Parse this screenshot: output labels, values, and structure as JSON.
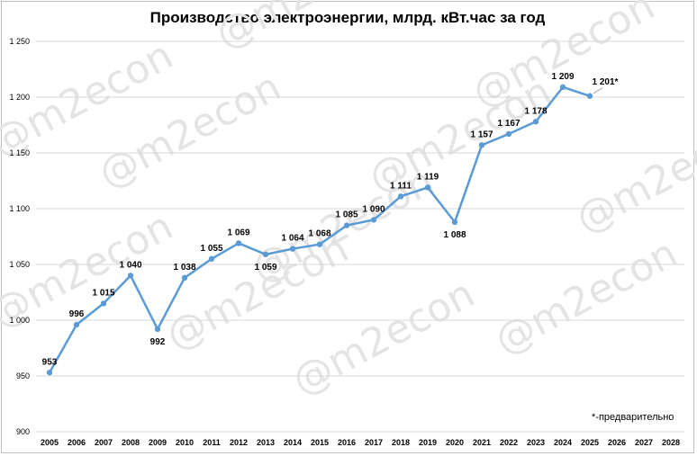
{
  "title": "Производство электроэнергии, млрд. кВт.час за год",
  "note": "*-предварительно",
  "watermark": "@m2econ",
  "chart_data": {
    "type": "line",
    "title": "Производство электроэнергии, млрд. кВт.час за год",
    "xlabel": "",
    "ylabel": "",
    "ylim": [
      900,
      1250
    ],
    "yticks": [
      900,
      950,
      1000,
      1050,
      1100,
      1150,
      1200,
      1250
    ],
    "ytick_labels": [
      "900",
      "950",
      "1 000",
      "1 050",
      "1 100",
      "1 150",
      "1 200",
      "1 250"
    ],
    "categories": [
      "2005",
      "2006",
      "2007",
      "2008",
      "2009",
      "2010",
      "2011",
      "2012",
      "2013",
      "2014",
      "2015",
      "2016",
      "2017",
      "2018",
      "2019",
      "2020",
      "2021",
      "2022",
      "2023",
      "2024",
      "2025",
      "2026",
      "2027",
      "2028"
    ],
    "line_color": "#5b9bd5",
    "grid": "horizontal",
    "series": [
      {
        "values": [
          953,
          996,
          1015,
          1040,
          992,
          1038,
          1055,
          1069,
          1059,
          1064,
          1068,
          1085,
          1090,
          1111,
          1119,
          1088,
          1157,
          1167,
          1178,
          1209,
          1201,
          null,
          null,
          null
        ],
        "labels": [
          "953",
          "996",
          "1 015",
          "1 040",
          "992",
          "1 038",
          "1 055",
          "1 069",
          "1 059",
          "1 064",
          "1 068",
          "1 085",
          "1 090",
          "1 111",
          "1 119",
          "1 088",
          "1 157",
          "1 167",
          "1 178",
          "1 209",
          "1 201*",
          "",
          "",
          ""
        ]
      }
    ]
  }
}
